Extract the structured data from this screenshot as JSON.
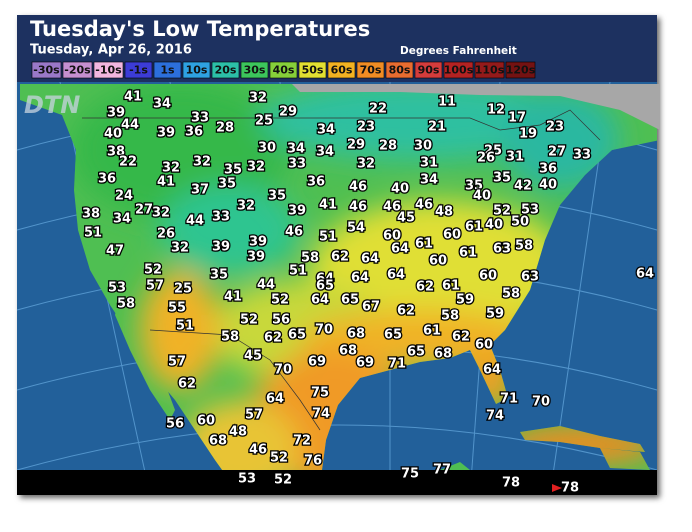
{
  "header": {
    "title": "Tuesday's Low Temperatures",
    "date": "Tuesday, Apr 26, 2016",
    "units": "Degrees Fahrenheit"
  },
  "logo": "DTN",
  "legend": [
    {
      "label": "-30s",
      "color": "#9a78c8"
    },
    {
      "label": "-20s",
      "color": "#c58fd0"
    },
    {
      "label": "-10s",
      "color": "#f2b6e0"
    },
    {
      "label": "-1s",
      "color": "#3c3cd6"
    },
    {
      "label": "1s",
      "color": "#2c6fdc"
    },
    {
      "label": "10s",
      "color": "#2ea2e2"
    },
    {
      "label": "20s",
      "color": "#2cbfa8"
    },
    {
      "label": "30s",
      "color": "#3cc65c"
    },
    {
      "label": "40s",
      "color": "#86d03a"
    },
    {
      "label": "50s",
      "color": "#e2e032"
    },
    {
      "label": "60s",
      "color": "#f2b222"
    },
    {
      "label": "70s",
      "color": "#f08c24"
    },
    {
      "label": "80s",
      "color": "#e86c30"
    },
    {
      "label": "90s",
      "color": "#d43c3c"
    },
    {
      "label": "100s",
      "color": "#b42222"
    },
    {
      "label": "110s",
      "color": "#941a1a"
    },
    {
      "label": "120s",
      "color": "#741212"
    }
  ],
  "map": {
    "labels": [
      41,
      34,
      32,
      39,
      33,
      44,
      29,
      25,
      22,
      11,
      12,
      17,
      40,
      39,
      36,
      28,
      34,
      23,
      21,
      19,
      23,
      38,
      30,
      34,
      34,
      29,
      28,
      30,
      25,
      22,
      32,
      32,
      35,
      32,
      33,
      32,
      31,
      26,
      31,
      27,
      33,
      36,
      36,
      41,
      37,
      35,
      36,
      46,
      40,
      34,
      35,
      35,
      42,
      40,
      24,
      35,
      40,
      27,
      32,
      34,
      38,
      44,
      33,
      32,
      39,
      41,
      46,
      46,
      45,
      46,
      48,
      52,
      53,
      51,
      26,
      54,
      60,
      61,
      60,
      61,
      40,
      50,
      47,
      32,
      39,
      39,
      46,
      51,
      39,
      58,
      62,
      64,
      64,
      61,
      63,
      58,
      52,
      35,
      51,
      64,
      64,
      64,
      60,
      60,
      63,
      64,
      53,
      57,
      25,
      44,
      65,
      62,
      61,
      41,
      52,
      64,
      65,
      67,
      62,
      58,
      58,
      55,
      59,
      56,
      52,
      70,
      68,
      65,
      58,
      59,
      51,
      58,
      62,
      65,
      61,
      62,
      68,
      65,
      68,
      60,
      45,
      69,
      69,
      71,
      57,
      70,
      64,
      62,
      75,
      71,
      70,
      64,
      74,
      74,
      57,
      56,
      60,
      48,
      68,
      72,
      46,
      52,
      76,
      75,
      77,
      53,
      52,
      78,
      78
    ]
  }
}
